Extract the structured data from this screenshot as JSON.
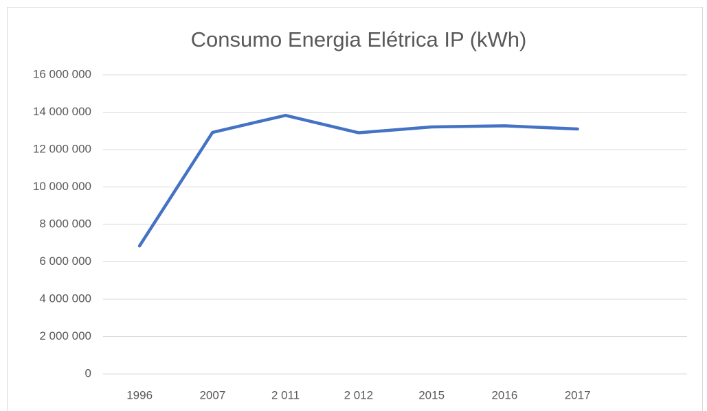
{
  "chart_data": {
    "type": "line",
    "title": "Consumo Energia Elétrica IP (kWh)",
    "categories": [
      "1996",
      "2007",
      "2 011",
      "2 012",
      "2015",
      "2016",
      "2017",
      null
    ],
    "series": [
      {
        "name": "Consumo Energia Elétrica IP (kWh)",
        "color": "#4472c4",
        "values": [
          6850000,
          12920000,
          13830000,
          12900000,
          13210000,
          13270000,
          13100000,
          null
        ]
      }
    ],
    "ylim": [
      0,
      16000000
    ],
    "yticks": [
      {
        "value": 0,
        "label": "0"
      },
      {
        "value": 2000000,
        "label": "2 000 000"
      },
      {
        "value": 4000000,
        "label": "4 000 000"
      },
      {
        "value": 6000000,
        "label": "6 000 000"
      },
      {
        "value": 8000000,
        "label": "8 000 000"
      },
      {
        "value": 10000000,
        "label": "10 000 000"
      },
      {
        "value": 12000000,
        "label": "12 000 000"
      },
      {
        "value": 14000000,
        "label": "14 000 000"
      },
      {
        "value": 16000000,
        "label": "16 000 000"
      }
    ],
    "grid": true
  }
}
